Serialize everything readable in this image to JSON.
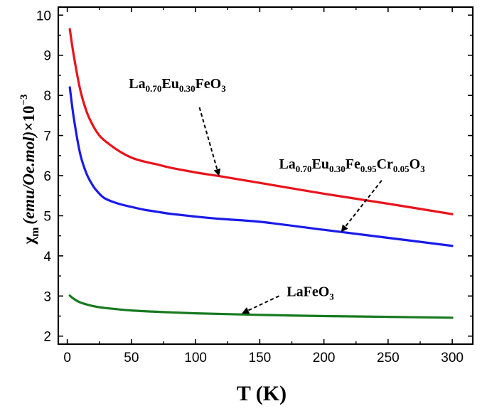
{
  "chart_data": {
    "type": "line",
    "title": "",
    "xlabel": "T (K)",
    "ylabel": {
      "symbol": "χ",
      "symbol_sub": "m",
      "unit": "(emu/Oe.mol)",
      "multiplier": "×10",
      "exponent": "−3"
    },
    "xlim": [
      -7,
      316
    ],
    "ylim": [
      1.8,
      10.2
    ],
    "xticks": [
      0,
      50,
      100,
      150,
      200,
      250,
      300
    ],
    "yticks": [
      2,
      3,
      4,
      5,
      6,
      7,
      8,
      9,
      10
    ],
    "series": [
      {
        "name": "La0.70Eu0.30FeO3",
        "color": "#e8141b",
        "x": [
          2,
          5,
          10,
          15,
          20,
          25,
          30,
          40,
          50,
          60,
          70,
          80,
          100,
          120,
          150,
          200,
          250,
          300
        ],
        "y": [
          9.65,
          9.0,
          8.15,
          7.6,
          7.25,
          7.0,
          6.85,
          6.62,
          6.45,
          6.35,
          6.28,
          6.2,
          6.08,
          5.98,
          5.82,
          5.55,
          5.3,
          5.04
        ]
      },
      {
        "name": "La0.70Eu0.30Fe0.95Cr0.05O3",
        "color": "#1a1aea",
        "x": [
          2,
          5,
          10,
          15,
          20,
          25,
          30,
          40,
          50,
          60,
          70,
          80,
          100,
          120,
          150,
          200,
          250,
          300
        ],
        "y": [
          8.2,
          7.45,
          6.55,
          6.05,
          5.75,
          5.55,
          5.42,
          5.3,
          5.22,
          5.15,
          5.1,
          5.05,
          4.98,
          4.92,
          4.85,
          4.65,
          4.45,
          4.25
        ]
      },
      {
        "name": "LaFeO3",
        "color": "#167a1e",
        "x": [
          2,
          5,
          10,
          20,
          30,
          50,
          75,
          100,
          150,
          200,
          250,
          300
        ],
        "y": [
          3.01,
          2.93,
          2.84,
          2.75,
          2.7,
          2.64,
          2.6,
          2.57,
          2.53,
          2.5,
          2.48,
          2.46
        ]
      }
    ],
    "annotations": [
      {
        "target": "La0.70Eu0.30FeO3",
        "parts": [
          [
            "La",
            ""
          ],
          [
            "0.70",
            "sub"
          ],
          [
            "Eu",
            ""
          ],
          [
            "0.30",
            "sub"
          ],
          [
            "FeO",
            ""
          ],
          [
            "3",
            "sub"
          ]
        ],
        "text_x": 48,
        "text_y": 8.18,
        "arrow_from": [
          103,
          7.7
        ],
        "arrow_to": [
          118,
          6.02
        ]
      },
      {
        "target": "La0.70Eu0.30Fe0.95Cr0.05O3",
        "parts": [
          [
            "La",
            ""
          ],
          [
            "0.70",
            "sub"
          ],
          [
            "Eu",
            ""
          ],
          [
            "0.30",
            "sub"
          ],
          [
            "Fe",
            ""
          ],
          [
            "0.95",
            "sub"
          ],
          [
            "Cr",
            ""
          ],
          [
            "0.05",
            "sub"
          ],
          [
            "O",
            ""
          ],
          [
            "3",
            "sub"
          ]
        ],
        "text_x": 165,
        "text_y": 6.18,
        "arrow_from": [
          245,
          5.88
        ],
        "arrow_to": [
          214,
          4.62
        ]
      },
      {
        "target": "LaFeO3",
        "parts": [
          [
            "LaFeO",
            ""
          ],
          [
            "3",
            "sub"
          ]
        ],
        "text_x": 171,
        "text_y": 3.0,
        "arrow_from": [
          165,
          3.0
        ],
        "arrow_to": [
          137,
          2.58
        ]
      }
    ],
    "grid": false,
    "legend": "none"
  }
}
